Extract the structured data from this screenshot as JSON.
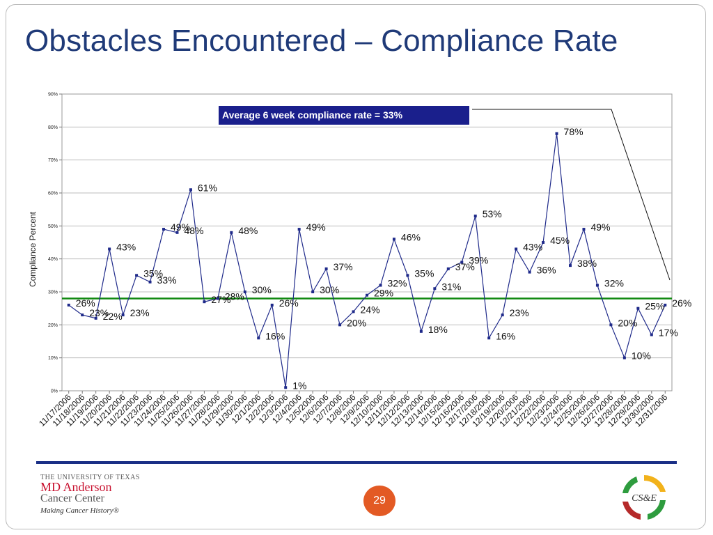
{
  "slide": {
    "title": "Obstacles Encountered – Compliance Rate",
    "page_number": "29",
    "footer_rule_color": "#1a2f86",
    "logo_left": {
      "line1": "The University of Texas",
      "line2": "MD Anderson",
      "line3": "Cancer Center",
      "line4": "Making Cancer History®"
    },
    "logo_right": {
      "text": "CS&E",
      "icon": "circular-arrows-icon"
    }
  },
  "chart_data": {
    "type": "line",
    "title": "",
    "xlabel": "",
    "ylabel": "Compliance Percent",
    "ylim": [
      0,
      90
    ],
    "yticks": [
      0,
      10,
      20,
      30,
      40,
      50,
      60,
      70,
      80,
      90
    ],
    "ytick_labels": [
      "0%",
      "10%",
      "20%",
      "30%",
      "40%",
      "50%",
      "60%",
      "70%",
      "80%",
      "90%"
    ],
    "grid": true,
    "line_color": "#1f2a8a",
    "reference_line": {
      "value": 28,
      "color": "#128a12"
    },
    "annotation": {
      "text": "Average 6 week compliance rate = 33%",
      "bg": "#1a1f8c",
      "color": "#ffffff"
    },
    "categories": [
      "11/17/2006",
      "11/18/2006",
      "11/19/2006",
      "11/20/2006",
      "11/21/2006",
      "11/22/2006",
      "11/23/2006",
      "11/24/2006",
      "11/25/2006",
      "11/26/2006",
      "11/27/2006",
      "11/28/2006",
      "11/29/2006",
      "11/30/2006",
      "12/1/2006",
      "12/2/2006",
      "12/3/2006",
      "12/4/2006",
      "12/5/2006",
      "12/6/2006",
      "12/7/2006",
      "12/8/2006",
      "12/9/2006",
      "12/10/2006",
      "12/11/2006",
      "12/12/2006",
      "12/13/2006",
      "12/14/2006",
      "12/15/2006",
      "12/16/2006",
      "12/17/2006",
      "12/18/2006",
      "12/19/2006",
      "12/20/2006",
      "12/21/2006",
      "12/22/2006",
      "12/23/2006",
      "12/24/2006",
      "12/25/2006",
      "12/26/2006",
      "12/27/2006",
      "12/28/2006",
      "12/29/2006",
      "12/30/2006",
      "12/31/2006"
    ],
    "values": [
      26,
      23,
      22,
      43,
      23,
      35,
      33,
      49,
      48,
      61,
      27,
      28,
      48,
      30,
      16,
      26,
      1,
      49,
      30,
      37,
      20,
      24,
      29,
      32,
      46,
      35,
      18,
      31,
      37,
      39,
      53,
      16,
      23,
      43,
      36,
      45,
      78,
      38,
      49,
      32,
      20,
      10,
      25,
      17,
      26
    ],
    "data_labels": [
      "26%",
      "23%",
      "22%",
      "43%",
      "23%",
      "35%",
      "33%",
      "49%",
      "48%",
      "61%",
      "27%",
      "28%",
      "48%",
      "30%",
      "16%",
      "26%",
      "1%",
      "49%",
      "30%",
      "37%",
      "20%",
      "24%",
      "29%",
      "32%",
      "46%",
      "35%",
      "18%",
      "31%",
      "37%",
      "39%",
      "53%",
      "16%",
      "23%",
      "43%",
      "36%",
      "45%",
      "78%",
      "38%",
      "49%",
      "32%",
      "20%",
      "10%",
      "25%",
      "17%",
      "26%"
    ]
  }
}
